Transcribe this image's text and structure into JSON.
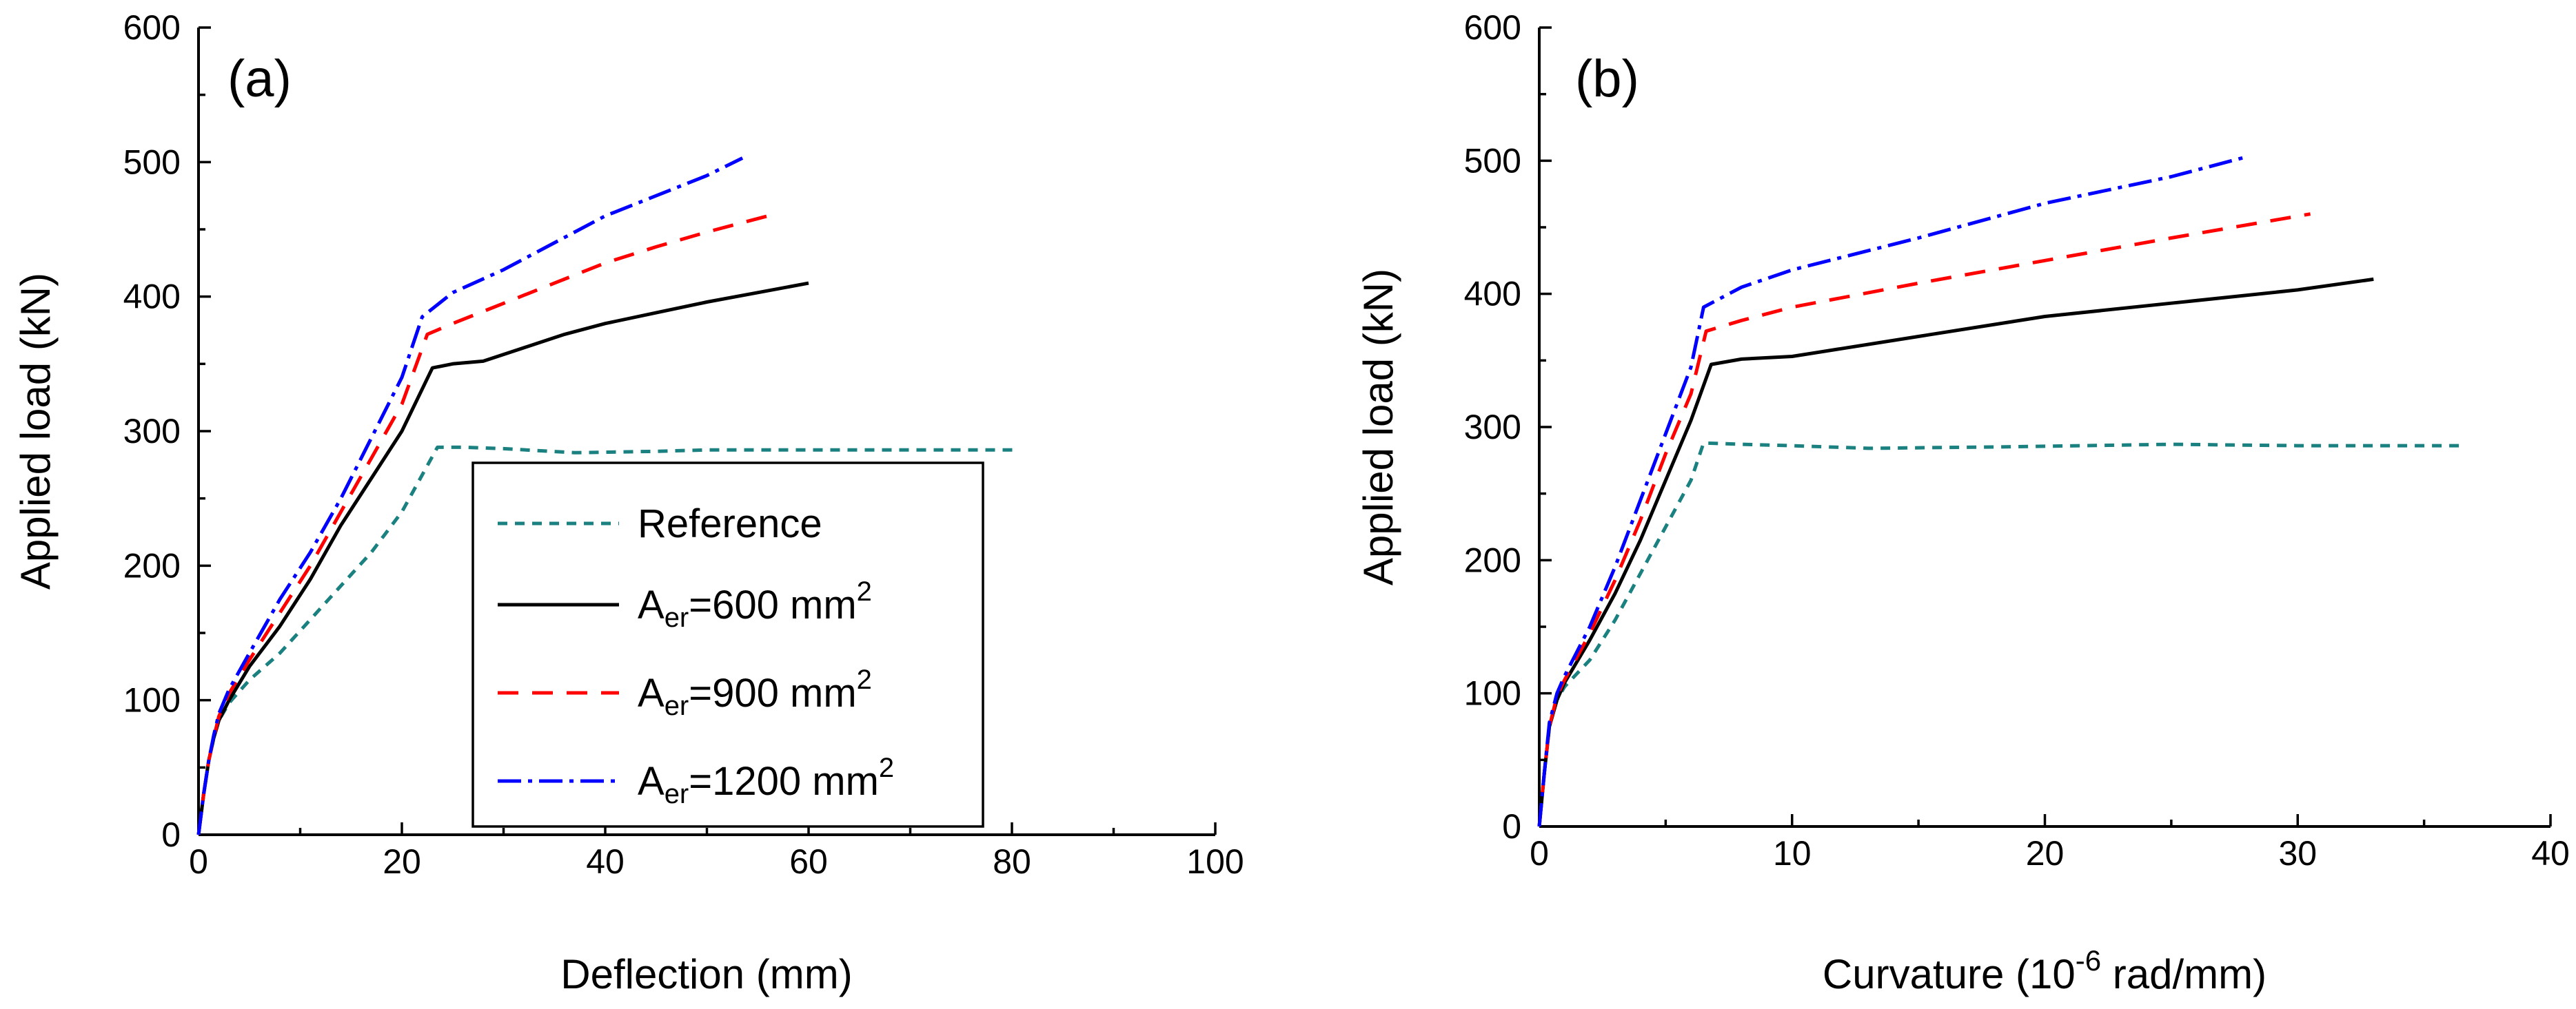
{
  "series_styles": [
    {
      "name": "Reference",
      "color": "#1a8080",
      "dash": "14,11"
    },
    {
      "name": "A_er=600 mm^2",
      "color": "#000000",
      "dash": "none"
    },
    {
      "name": "A_er=900 mm^2",
      "color": "#ff0000",
      "dash": "30,20"
    },
    {
      "name": "A_er=1200 mm^2",
      "color": "#0000ff",
      "dash": "34,10,6,10"
    }
  ],
  "legend": {
    "entries": [
      {
        "main": "Reference",
        "sub": "",
        "after": "",
        "sup": ""
      },
      {
        "main": "A",
        "sub": "er",
        "after": "=600 mm",
        "sup": "2"
      },
      {
        "main": "A",
        "sub": "er",
        "after": "=900 mm",
        "sup": "2"
      },
      {
        "main": "A",
        "sub": "er",
        "after": "=1200 mm",
        "sup": "2"
      }
    ]
  },
  "chart_data": [
    {
      "type": "line",
      "panel_label": "(a)",
      "xlabel": "Deflection (mm)",
      "ylabel": "Applied load (kN)",
      "xlim": [
        0,
        100
      ],
      "ylim": [
        0,
        600
      ],
      "x_ticks": [
        0,
        20,
        40,
        60,
        80,
        100
      ],
      "y_ticks": [
        0,
        100,
        200,
        300,
        400,
        500,
        600
      ],
      "grid": false,
      "legend_position": "center",
      "series": [
        {
          "name": "Reference",
          "points": [
            [
              0,
              0
            ],
            [
              0.5,
              30
            ],
            [
              1,
              55
            ],
            [
              1.5,
              72
            ],
            [
              2,
              85
            ],
            [
              3,
              98
            ],
            [
              5,
              115
            ],
            [
              8,
              135
            ],
            [
              11,
              160
            ],
            [
              14,
              185
            ],
            [
              17,
              210
            ],
            [
              20,
              240
            ],
            [
              23.5,
              288
            ],
            [
              26,
              288
            ],
            [
              30,
              287
            ],
            [
              37,
              284
            ],
            [
              45,
              285
            ],
            [
              50,
              286
            ],
            [
              60,
              286
            ],
            [
              70,
              286
            ],
            [
              80.5,
              286
            ]
          ]
        },
        {
          "name": "A_er=600 mm^2",
          "points": [
            [
              0,
              0
            ],
            [
              0.5,
              30
            ],
            [
              1,
              55
            ],
            [
              1.5,
              72
            ],
            [
              2,
              85
            ],
            [
              3,
              100
            ],
            [
              5,
              125
            ],
            [
              8,
              155
            ],
            [
              11,
              190
            ],
            [
              14,
              230
            ],
            [
              17,
              265
            ],
            [
              20,
              300
            ],
            [
              23,
              347
            ],
            [
              25,
              350
            ],
            [
              28,
              352
            ],
            [
              32,
              362
            ],
            [
              36,
              372
            ],
            [
              40,
              380
            ],
            [
              45,
              388
            ],
            [
              50,
              396
            ],
            [
              55,
              403
            ],
            [
              60,
              410
            ]
          ]
        },
        {
          "name": "A_er=900 mm^2",
          "points": [
            [
              0,
              0
            ],
            [
              0.5,
              30
            ],
            [
              1,
              55
            ],
            [
              1.5,
              72
            ],
            [
              2,
              88
            ],
            [
              3,
              105
            ],
            [
              5,
              130
            ],
            [
              8,
              165
            ],
            [
              11,
              200
            ],
            [
              14,
              240
            ],
            [
              17,
              280
            ],
            [
              20,
              320
            ],
            [
              22.5,
              372
            ],
            [
              25,
              380
            ],
            [
              30,
              395
            ],
            [
              35,
              410
            ],
            [
              40,
              425
            ],
            [
              45,
              437
            ],
            [
              50,
              448
            ],
            [
              57,
              462
            ]
          ]
        },
        {
          "name": "A_er=1200 mm^2",
          "points": [
            [
              0,
              0
            ],
            [
              0.5,
              30
            ],
            [
              1,
              55
            ],
            [
              1.5,
              74
            ],
            [
              2,
              90
            ],
            [
              3,
              108
            ],
            [
              5,
              135
            ],
            [
              8,
              175
            ],
            [
              11,
              210
            ],
            [
              14,
              250
            ],
            [
              17,
              295
            ],
            [
              20,
              340
            ],
            [
              22,
              385
            ],
            [
              25,
              403
            ],
            [
              30,
              420
            ],
            [
              35,
              440
            ],
            [
              40,
              460
            ],
            [
              45,
              475
            ],
            [
              50,
              490
            ],
            [
              53.5,
              503
            ]
          ]
        }
      ]
    },
    {
      "type": "line",
      "panel_label": "(b)",
      "xlabel_main": "Curvature (10",
      "xlabel_sup": "-6",
      "xlabel_after": " rad/mm)",
      "ylabel": "Applied load (kN)",
      "xlim": [
        0,
        40
      ],
      "ylim": [
        0,
        600
      ],
      "x_ticks": [
        0,
        10,
        20,
        30,
        40
      ],
      "y_ticks": [
        0,
        100,
        200,
        300,
        400,
        500,
        600
      ],
      "grid": false,
      "series": [
        {
          "name": "Reference",
          "points": [
            [
              0,
              0
            ],
            [
              0.2,
              40
            ],
            [
              0.4,
              75
            ],
            [
              0.7,
              95
            ],
            [
              1,
              105
            ],
            [
              2,
              125
            ],
            [
              3,
              155
            ],
            [
              4,
              190
            ],
            [
              5,
              225
            ],
            [
              6,
              260
            ],
            [
              6.5,
              288
            ],
            [
              8,
              287
            ],
            [
              10,
              286
            ],
            [
              13,
              284
            ],
            [
              18,
              285
            ],
            [
              25,
              287
            ],
            [
              30,
              286
            ],
            [
              36.5,
              286
            ]
          ]
        },
        {
          "name": "A_er=600 mm^2",
          "points": [
            [
              0,
              0
            ],
            [
              0.2,
              40
            ],
            [
              0.4,
              75
            ],
            [
              0.7,
              95
            ],
            [
              1,
              108
            ],
            [
              2,
              140
            ],
            [
              3,
              175
            ],
            [
              4,
              215
            ],
            [
              5,
              260
            ],
            [
              6,
              305
            ],
            [
              6.8,
              347
            ],
            [
              8,
              351
            ],
            [
              10,
              353
            ],
            [
              15,
              368
            ],
            [
              20,
              383
            ],
            [
              25,
              393
            ],
            [
              30,
              403
            ],
            [
              33,
              411
            ]
          ]
        },
        {
          "name": "A_er=900 mm^2",
          "points": [
            [
              0,
              0
            ],
            [
              0.2,
              40
            ],
            [
              0.4,
              75
            ],
            [
              0.7,
              98
            ],
            [
              1,
              110
            ],
            [
              2,
              145
            ],
            [
              3,
              185
            ],
            [
              4,
              230
            ],
            [
              5,
              280
            ],
            [
              6,
              325
            ],
            [
              6.6,
              372
            ],
            [
              8,
              380
            ],
            [
              10,
              390
            ],
            [
              15,
              408
            ],
            [
              20,
              425
            ],
            [
              25,
              442
            ],
            [
              30.5,
              460
            ]
          ]
        },
        {
          "name": "A_er=1200 mm^2",
          "points": [
            [
              0,
              0
            ],
            [
              0.2,
              40
            ],
            [
              0.4,
              78
            ],
            [
              0.7,
              100
            ],
            [
              1,
              113
            ],
            [
              2,
              150
            ],
            [
              3,
              195
            ],
            [
              4,
              245
            ],
            [
              5,
              295
            ],
            [
              6,
              345
            ],
            [
              6.5,
              390
            ],
            [
              8,
              405
            ],
            [
              10,
              418
            ],
            [
              15,
              442
            ],
            [
              20,
              468
            ],
            [
              25,
              488
            ],
            [
              28,
              503
            ]
          ]
        }
      ]
    }
  ]
}
